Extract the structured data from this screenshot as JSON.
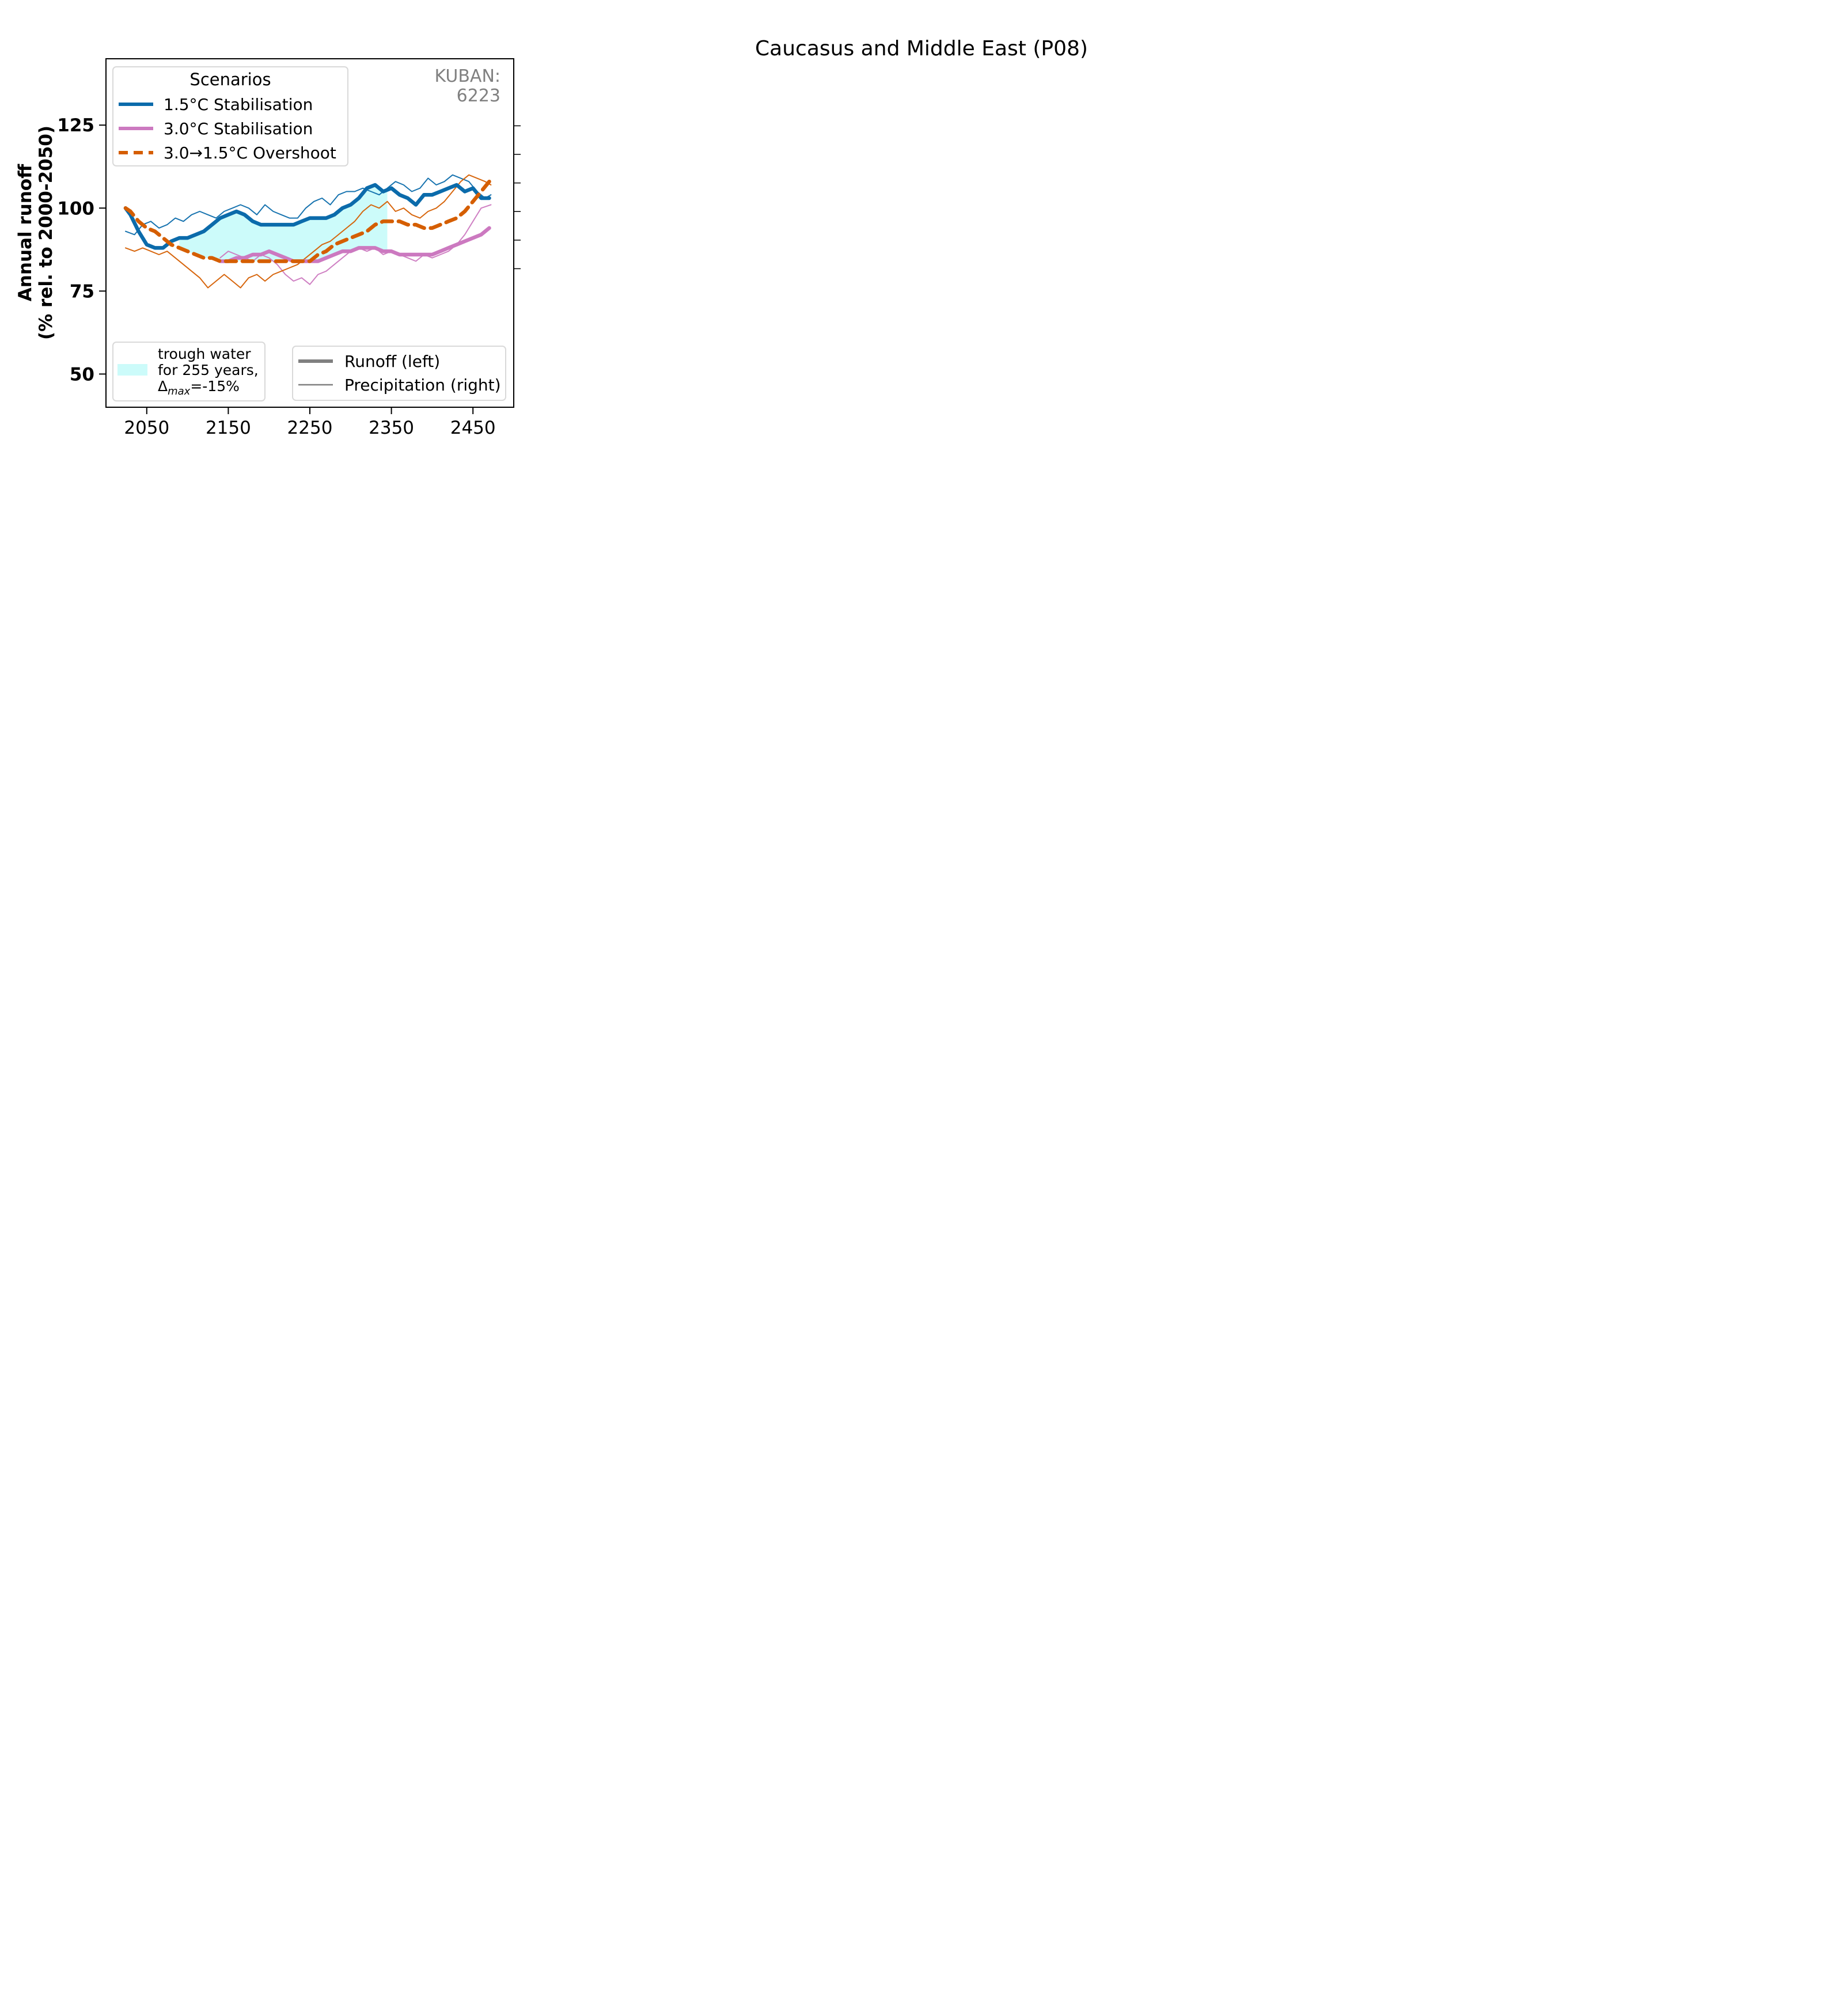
{
  "page": {
    "title": "Caucasus and Middle East (P08)"
  },
  "colors": {
    "s15": "#0b6bab",
    "s30": "#cc79c0",
    "over": "#d55e00",
    "trough": "#ccfbfa",
    "grey": "#808080"
  },
  "chart_data": {
    "type": "line",
    "title": "Caucasus and Middle East (P08)",
    "basin_label": {
      "line1": "KUBAN:",
      "line2": "6223"
    },
    "ylabel": {
      "line1": "Annual runoff",
      "line2": "(% rel. to 2000-2050)"
    },
    "xlabel": "",
    "xlim": [
      2000,
      2500
    ],
    "ylim": [
      40,
      145
    ],
    "x_ticks": [
      2050,
      2150,
      2250,
      2350,
      2450
    ],
    "y_ticks": [
      50,
      75,
      100,
      125
    ],
    "grid": false,
    "legend_scenarios": {
      "title": "Scenarios",
      "placement": "top-left",
      "items": [
        "1.5°C Stabilisation",
        "3.0°C Stabilisation",
        "3.0→1.5°C Overshoot"
      ]
    },
    "legend_trough": {
      "placement": "bottom-left",
      "line1": "trough water",
      "line2": "for 255 years,",
      "line3": "Δmax=-15%",
      "delta": "Δ",
      "max": "max",
      "value": "=-15%"
    },
    "legend_linetype": {
      "placement": "bottom-right",
      "items": [
        "Runoff (left)",
        "Precipitation (right)"
      ]
    },
    "trough": {
      "x_start": 2090,
      "x_end": 2345,
      "years": 255,
      "delta_max_pct": -15
    },
    "series": [
      {
        "name": "1.5°C Stabilisation",
        "variable": "Runoff (left)",
        "style": "solid",
        "x": [
          2024,
          2030,
          2040,
          2050,
          2060,
          2070,
          2080,
          2090,
          2100,
          2110,
          2120,
          2130,
          2140,
          2150,
          2160,
          2170,
          2180,
          2190,
          2200,
          2210,
          2220,
          2230,
          2240,
          2250,
          2260,
          2270,
          2280,
          2290,
          2300,
          2310,
          2320,
          2330,
          2340,
          2350,
          2360,
          2370,
          2380,
          2390,
          2400,
          2410,
          2420,
          2430,
          2440,
          2450,
          2460,
          2470
        ],
        "y": [
          100,
          98,
          93,
          89,
          88,
          88,
          90,
          91,
          91,
          92,
          93,
          95,
          97,
          98,
          99,
          98,
          96,
          95,
          95,
          95,
          95,
          95,
          96,
          97,
          97,
          97,
          98,
          100,
          101,
          103,
          106,
          107,
          105,
          106,
          104,
          103,
          101,
          104,
          104,
          105,
          106,
          107,
          105,
          106,
          103,
          103
        ]
      },
      {
        "name": "3.0°C Stabilisation",
        "variable": "Runoff (left)",
        "style": "solid",
        "x": [
          2140,
          2150,
          2160,
          2170,
          2180,
          2190,
          2200,
          2210,
          2220,
          2230,
          2240,
          2250,
          2260,
          2270,
          2280,
          2290,
          2300,
          2310,
          2320,
          2330,
          2340,
          2350,
          2360,
          2370,
          2380,
          2390,
          2400,
          2410,
          2420,
          2430,
          2440,
          2450,
          2460,
          2470
        ],
        "y": [
          84,
          84,
          85,
          85,
          86,
          86,
          87,
          86,
          85,
          84,
          84,
          84,
          84,
          85,
          86,
          87,
          87,
          88,
          88,
          88,
          87,
          87,
          86,
          86,
          86,
          86,
          86,
          87,
          88,
          89,
          90,
          91,
          92,
          94
        ]
      },
      {
        "name": "3.0→1.5°C Overshoot",
        "variable": "Runoff (left)",
        "style": "dashed",
        "x": [
          2024,
          2030,
          2040,
          2050,
          2060,
          2070,
          2080,
          2090,
          2100,
          2110,
          2120,
          2130,
          2140,
          2150,
          2160,
          2170,
          2180,
          2190,
          2200,
          2210,
          2220,
          2230,
          2240,
          2250,
          2260,
          2270,
          2280,
          2290,
          2300,
          2310,
          2320,
          2330,
          2340,
          2350,
          2360,
          2370,
          2380,
          2390,
          2400,
          2410,
          2420,
          2430,
          2440,
          2450,
          2460,
          2470
        ],
        "y": [
          100,
          99,
          96,
          94,
          93,
          91,
          89,
          88,
          87,
          86,
          85,
          85,
          84,
          84,
          84,
          84,
          84,
          84,
          84,
          84,
          84,
          84,
          84,
          84,
          86,
          87,
          89,
          90,
          91,
          92,
          93,
          95,
          96,
          96,
          96,
          95,
          95,
          94,
          94,
          95,
          96,
          97,
          99,
          102,
          105,
          108
        ]
      },
      {
        "name": "1.5°C Stabilisation",
        "variable": "Precipitation (right)",
        "style": "thin",
        "x": [
          2024,
          2035,
          2045,
          2055,
          2065,
          2075,
          2085,
          2095,
          2105,
          2115,
          2125,
          2135,
          2145,
          2155,
          2165,
          2175,
          2185,
          2195,
          2205,
          2215,
          2225,
          2235,
          2245,
          2255,
          2265,
          2275,
          2285,
          2295,
          2305,
          2315,
          2325,
          2335,
          2345,
          2355,
          2365,
          2375,
          2385,
          2395,
          2405,
          2415,
          2425,
          2435,
          2445,
          2455,
          2465,
          2472
        ],
        "y": [
          93,
          92,
          95,
          96,
          94,
          95,
          97,
          96,
          98,
          99,
          98,
          97,
          99,
          100,
          101,
          100,
          98,
          101,
          99,
          98,
          97,
          97,
          100,
          102,
          103,
          101,
          104,
          105,
          105,
          106,
          105,
          104,
          106,
          108,
          107,
          105,
          106,
          109,
          107,
          108,
          110,
          109,
          108,
          105,
          103,
          104
        ]
      },
      {
        "name": "3.0°C Stabilisation",
        "variable": "Precipitation (right)",
        "style": "thin",
        "x": [
          2140,
          2150,
          2160,
          2170,
          2180,
          2190,
          2200,
          2210,
          2220,
          2230,
          2240,
          2250,
          2260,
          2270,
          2280,
          2290,
          2300,
          2310,
          2320,
          2330,
          2340,
          2350,
          2360,
          2370,
          2380,
          2390,
          2400,
          2410,
          2420,
          2430,
          2440,
          2450,
          2460,
          2472
        ],
        "y": [
          85,
          87,
          86,
          85,
          84,
          86,
          85,
          83,
          80,
          78,
          79,
          77,
          80,
          81,
          83,
          85,
          87,
          88,
          87,
          88,
          86,
          87,
          86,
          85,
          84,
          86,
          85,
          86,
          87,
          89,
          92,
          96,
          100,
          101
        ]
      },
      {
        "name": "3.0→1.5°C Overshoot",
        "variable": "Precipitation (right)",
        "style": "thin",
        "x": [
          2024,
          2035,
          2045,
          2055,
          2065,
          2075,
          2085,
          2095,
          2105,
          2115,
          2125,
          2135,
          2145,
          2155,
          2165,
          2175,
          2185,
          2195,
          2205,
          2215,
          2225,
          2235,
          2245,
          2255,
          2265,
          2275,
          2285,
          2295,
          2305,
          2315,
          2325,
          2335,
          2345,
          2355,
          2365,
          2375,
          2385,
          2395,
          2405,
          2415,
          2425,
          2435,
          2445,
          2455,
          2465,
          2472
        ],
        "y": [
          88,
          87,
          88,
          87,
          86,
          87,
          85,
          83,
          81,
          79,
          76,
          78,
          80,
          78,
          76,
          79,
          80,
          78,
          80,
          81,
          82,
          83,
          85,
          87,
          89,
          90,
          92,
          94,
          96,
          99,
          101,
          100,
          102,
          99,
          100,
          98,
          97,
          99,
          100,
          102,
          105,
          108,
          110,
          109,
          108,
          107
        ]
      }
    ]
  }
}
